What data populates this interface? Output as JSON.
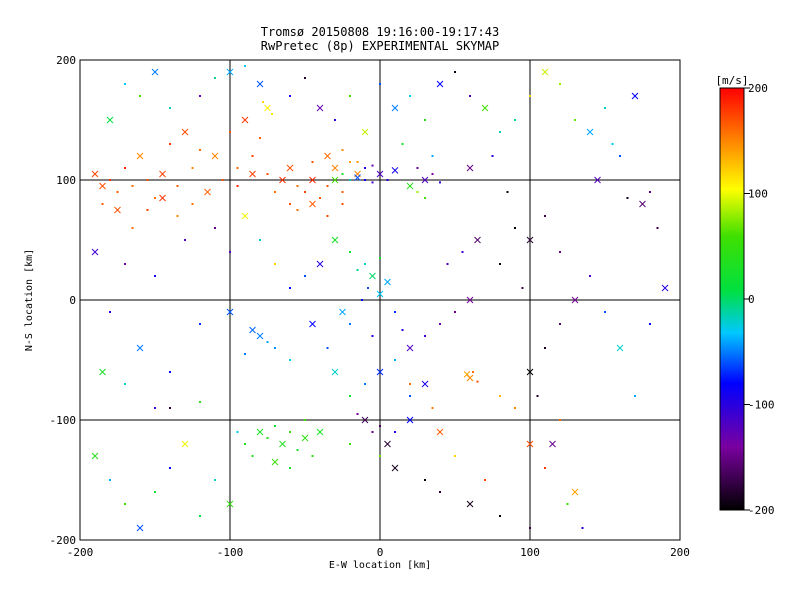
{
  "chart_data": {
    "type": "scatter",
    "title": "Tromsø 20150808 19:16:00-19:17:43",
    "subtitle": "RwPretec (8p) EXPERIMENTAL SKYMAP",
    "xlabel": "E-W location [km]",
    "ylabel": "N-S location [km]",
    "xlim": [
      -200,
      200
    ],
    "ylim": [
      -200,
      200
    ],
    "xticks": [
      -200,
      -100,
      0,
      100,
      200
    ],
    "yticks": [
      -200,
      -100,
      0,
      100,
      200
    ],
    "grid": true,
    "colorbar": {
      "label": "[m/s]",
      "range": [
        -200,
        200
      ],
      "ticks": [
        200,
        100,
        0,
        -100,
        -200
      ]
    },
    "points": [
      [
        -185,
        95,
        170
      ],
      [
        -180,
        100,
        180
      ],
      [
        -175,
        90,
        165
      ],
      [
        -190,
        105,
        175
      ],
      [
        -170,
        110,
        185
      ],
      [
        -165,
        95,
        160
      ],
      [
        -160,
        120,
        150
      ],
      [
        -155,
        100,
        170
      ],
      [
        -150,
        85,
        160
      ],
      [
        -145,
        105,
        175
      ],
      [
        -140,
        130,
        180
      ],
      [
        -135,
        95,
        165
      ],
      [
        -130,
        140,
        170
      ],
      [
        -125,
        110,
        150
      ],
      [
        -120,
        125,
        160
      ],
      [
        -110,
        120,
        150
      ],
      [
        -100,
        140,
        170
      ],
      [
        -95,
        110,
        160
      ],
      [
        -90,
        150,
        180
      ],
      [
        -85,
        120,
        175
      ],
      [
        -80,
        135,
        165
      ],
      [
        -75,
        160,
        110
      ],
      [
        -78,
        165,
        120
      ],
      [
        -72,
        155,
        115
      ],
      [
        -60,
        110,
        170
      ],
      [
        -55,
        95,
        160
      ],
      [
        -50,
        90,
        175
      ],
      [
        -45,
        100,
        185
      ],
      [
        -40,
        85,
        165
      ],
      [
        -35,
        95,
        170
      ],
      [
        -30,
        110,
        150
      ],
      [
        -25,
        90,
        165
      ],
      [
        -20,
        115,
        140
      ],
      [
        -15,
        105,
        150
      ],
      [
        -60,
        80,
        170
      ],
      [
        -55,
        75,
        160
      ],
      [
        -45,
        80,
        165
      ],
      [
        -35,
        70,
        175
      ],
      [
        -25,
        80,
        170
      ],
      [
        -65,
        100,
        180
      ],
      [
        -70,
        90,
        160
      ],
      [
        -75,
        105,
        170
      ],
      [
        -30,
        100,
        60
      ],
      [
        -25,
        105,
        30
      ],
      [
        -20,
        100,
        -20
      ],
      [
        -15,
        102,
        -60
      ],
      [
        -10,
        100,
        -90
      ],
      [
        -5,
        98,
        -110
      ],
      [
        0,
        105,
        -120
      ],
      [
        -10,
        110,
        -100
      ],
      [
        5,
        100,
        -95
      ],
      [
        10,
        108,
        -90
      ],
      [
        -5,
        112,
        -130
      ],
      [
        25,
        110,
        -150
      ],
      [
        30,
        100,
        -120
      ],
      [
        35,
        105,
        -140
      ],
      [
        40,
        98,
        -100
      ],
      [
        20,
        95,
        40
      ],
      [
        25,
        90,
        80
      ],
      [
        30,
        85,
        60
      ],
      [
        -30,
        50,
        30
      ],
      [
        -20,
        40,
        10
      ],
      [
        -10,
        30,
        -20
      ],
      [
        -5,
        20,
        0
      ],
      [
        0,
        35,
        20
      ],
      [
        -15,
        25,
        -10
      ],
      [
        5,
        15,
        -40
      ],
      [
        -8,
        10,
        -60
      ],
      [
        -12,
        0,
        -80
      ],
      [
        0,
        5,
        -30
      ],
      [
        10,
        -10,
        -70
      ],
      [
        -20,
        -20,
        -50
      ],
      [
        -25,
        -10,
        -40
      ],
      [
        -5,
        -30,
        -90
      ],
      [
        15,
        -25,
        -100
      ],
      [
        20,
        -40,
        -120
      ],
      [
        30,
        -30,
        -110
      ],
      [
        -35,
        -40,
        -60
      ],
      [
        -45,
        -20,
        -80
      ],
      [
        40,
        -20,
        -130
      ],
      [
        50,
        -10,
        -150
      ],
      [
        60,
        0,
        -140
      ],
      [
        45,
        30,
        -120
      ],
      [
        55,
        40,
        -110
      ],
      [
        65,
        50,
        -160
      ],
      [
        80,
        30,
        -190
      ],
      [
        90,
        60,
        -200
      ],
      [
        100,
        50,
        -180
      ],
      [
        110,
        70,
        -170
      ],
      [
        120,
        40,
        -150
      ],
      [
        -80,
        -30,
        -50
      ],
      [
        -75,
        -35,
        -40
      ],
      [
        -70,
        -40,
        -45
      ],
      [
        -85,
        -25,
        -55
      ],
      [
        -90,
        -45,
        -50
      ],
      [
        -60,
        -50,
        -30
      ],
      [
        -100,
        -10,
        -60
      ],
      [
        -120,
        -20,
        -70
      ],
      [
        -140,
        -60,
        -80
      ],
      [
        -160,
        -40,
        -50
      ],
      [
        -180,
        -10,
        -100
      ],
      [
        -170,
        30,
        -130
      ],
      [
        -190,
        40,
        -110
      ],
      [
        -150,
        20,
        -90
      ],
      [
        -130,
        50,
        -120
      ],
      [
        -80,
        -110,
        30
      ],
      [
        -75,
        -115,
        40
      ],
      [
        -70,
        -105,
        20
      ],
      [
        -65,
        -120,
        35
      ],
      [
        -60,
        -110,
        50
      ],
      [
        -55,
        -125,
        25
      ],
      [
        -50,
        -115,
        45
      ],
      [
        -85,
        -130,
        40
      ],
      [
        -90,
        -120,
        30
      ],
      [
        -70,
        -135,
        55
      ],
      [
        -60,
        -140,
        20
      ],
      [
        -50,
        -100,
        60
      ],
      [
        -40,
        -110,
        35
      ],
      [
        -45,
        -130,
        45
      ],
      [
        -95,
        -110,
        -30
      ],
      [
        -10,
        -100,
        -170
      ],
      [
        -5,
        -110,
        -150
      ],
      [
        0,
        -105,
        -160
      ],
      [
        5,
        -120,
        -180
      ],
      [
        -15,
        -95,
        -140
      ],
      [
        10,
        -110,
        -100
      ],
      [
        20,
        -100,
        -80
      ],
      [
        -20,
        -120,
        60
      ],
      [
        0,
        -130,
        70
      ],
      [
        10,
        -140,
        -190
      ],
      [
        30,
        -150,
        -200
      ],
      [
        40,
        -160,
        -180
      ],
      [
        60,
        -170,
        -190
      ],
      [
        80,
        -180,
        -200
      ],
      [
        100,
        -190,
        -170
      ],
      [
        60,
        -65,
        150
      ],
      [
        62,
        -60,
        160
      ],
      [
        65,
        -68,
        170
      ],
      [
        58,
        -62,
        140
      ],
      [
        80,
        -80,
        130
      ],
      [
        90,
        -90,
        150
      ],
      [
        100,
        -120,
        170
      ],
      [
        110,
        -140,
        180
      ],
      [
        120,
        -100,
        160
      ],
      [
        130,
        -160,
        140
      ],
      [
        70,
        -150,
        175
      ],
      [
        50,
        -130,
        120
      ],
      [
        40,
        -110,
        165
      ],
      [
        35,
        -90,
        155
      ],
      [
        20,
        -70,
        160
      ],
      [
        140,
        140,
        -40
      ],
      [
        150,
        160,
        -20
      ],
      [
        160,
        120,
        -60
      ],
      [
        170,
        170,
        -80
      ],
      [
        180,
        90,
        -150
      ],
      [
        185,
        60,
        -170
      ],
      [
        175,
        80,
        -160
      ],
      [
        165,
        85,
        -190
      ],
      [
        155,
        130,
        -30
      ],
      [
        145,
        100,
        -120
      ],
      [
        130,
        150,
        70
      ],
      [
        120,
        180,
        80
      ],
      [
        110,
        190,
        90
      ],
      [
        100,
        170,
        120
      ],
      [
        90,
        150,
        -10
      ],
      [
        -190,
        -130,
        40
      ],
      [
        -180,
        -150,
        -40
      ],
      [
        -170,
        -170,
        60
      ],
      [
        -160,
        -190,
        -60
      ],
      [
        -150,
        -160,
        20
      ],
      [
        -140,
        -140,
        -80
      ],
      [
        -130,
        -120,
        100
      ],
      [
        -120,
        -180,
        10
      ],
      [
        -110,
        -150,
        -20
      ],
      [
        -100,
        -170,
        50
      ],
      [
        -150,
        -90,
        -110
      ],
      [
        -170,
        -70,
        -20
      ],
      [
        -185,
        -60,
        30
      ],
      [
        -140,
        -90,
        -180
      ],
      [
        -120,
        -85,
        40
      ],
      [
        -180,
        150,
        10
      ],
      [
        -170,
        180,
        -30
      ],
      [
        -160,
        170,
        60
      ],
      [
        -150,
        190,
        -50
      ],
      [
        -140,
        160,
        -20
      ],
      [
        -120,
        170,
        -120
      ],
      [
        -100,
        190,
        -40
      ],
      [
        -110,
        185,
        -10
      ],
      [
        -90,
        195,
        -30
      ],
      [
        -80,
        180,
        -60
      ],
      [
        -60,
        170,
        -90
      ],
      [
        -50,
        185,
        -180
      ],
      [
        -40,
        160,
        -130
      ],
      [
        -30,
        150,
        -100
      ],
      [
        -20,
        170,
        60
      ],
      [
        10,
        160,
        -50
      ],
      [
        20,
        170,
        -30
      ],
      [
        30,
        150,
        40
      ],
      [
        40,
        180,
        -80
      ],
      [
        50,
        190,
        -190
      ],
      [
        60,
        170,
        -120
      ],
      [
        70,
        160,
        60
      ],
      [
        80,
        140,
        -20
      ],
      [
        0,
        180,
        -60
      ],
      [
        -10,
        140,
        90
      ],
      [
        15,
        130,
        30
      ],
      [
        35,
        120,
        -40
      ],
      [
        60,
        110,
        -150
      ],
      [
        75,
        120,
        -100
      ],
      [
        85,
        90,
        -200
      ],
      [
        100,
        -60,
        -200
      ],
      [
        110,
        -40,
        -190
      ],
      [
        120,
        -20,
        -160
      ],
      [
        130,
        0,
        -140
      ],
      [
        140,
        20,
        -120
      ],
      [
        150,
        -10,
        -60
      ],
      [
        160,
        -40,
        -20
      ],
      [
        170,
        -80,
        -40
      ],
      [
        180,
        -20,
        -80
      ],
      [
        190,
        10,
        -100
      ],
      [
        95,
        10,
        -170
      ],
      [
        105,
        -80,
        -180
      ],
      [
        115,
        -120,
        -150
      ],
      [
        125,
        -170,
        60
      ],
      [
        135,
        -190,
        -90
      ],
      [
        -40,
        30,
        -100
      ],
      [
        -50,
        20,
        -60
      ],
      [
        -60,
        10,
        -80
      ],
      [
        -30,
        -60,
        -20
      ],
      [
        -20,
        -80,
        10
      ],
      [
        -10,
        -70,
        -50
      ],
      [
        0,
        -60,
        -70
      ],
      [
        10,
        -50,
        -40
      ],
      [
        20,
        -80,
        -60
      ],
      [
        30,
        -70,
        -90
      ],
      [
        -100,
        40,
        -120
      ],
      [
        -110,
        60,
        -150
      ],
      [
        -90,
        70,
        100
      ],
      [
        -80,
        50,
        -20
      ],
      [
        -70,
        30,
        120
      ],
      [
        -85,
        105,
        175
      ],
      [
        -95,
        95,
        185
      ],
      [
        -105,
        100,
        170
      ],
      [
        -115,
        90,
        165
      ],
      [
        -125,
        80,
        160
      ],
      [
        -135,
        70,
        150
      ],
      [
        -145,
        85,
        180
      ],
      [
        -155,
        75,
        175
      ],
      [
        -165,
        60,
        160
      ],
      [
        -175,
        75,
        170
      ],
      [
        -185,
        80,
        165
      ],
      [
        -45,
        115,
        170
      ],
      [
        -35,
        120,
        160
      ],
      [
        -25,
        125,
        150
      ],
      [
        -15,
        115,
        145
      ]
    ]
  }
}
